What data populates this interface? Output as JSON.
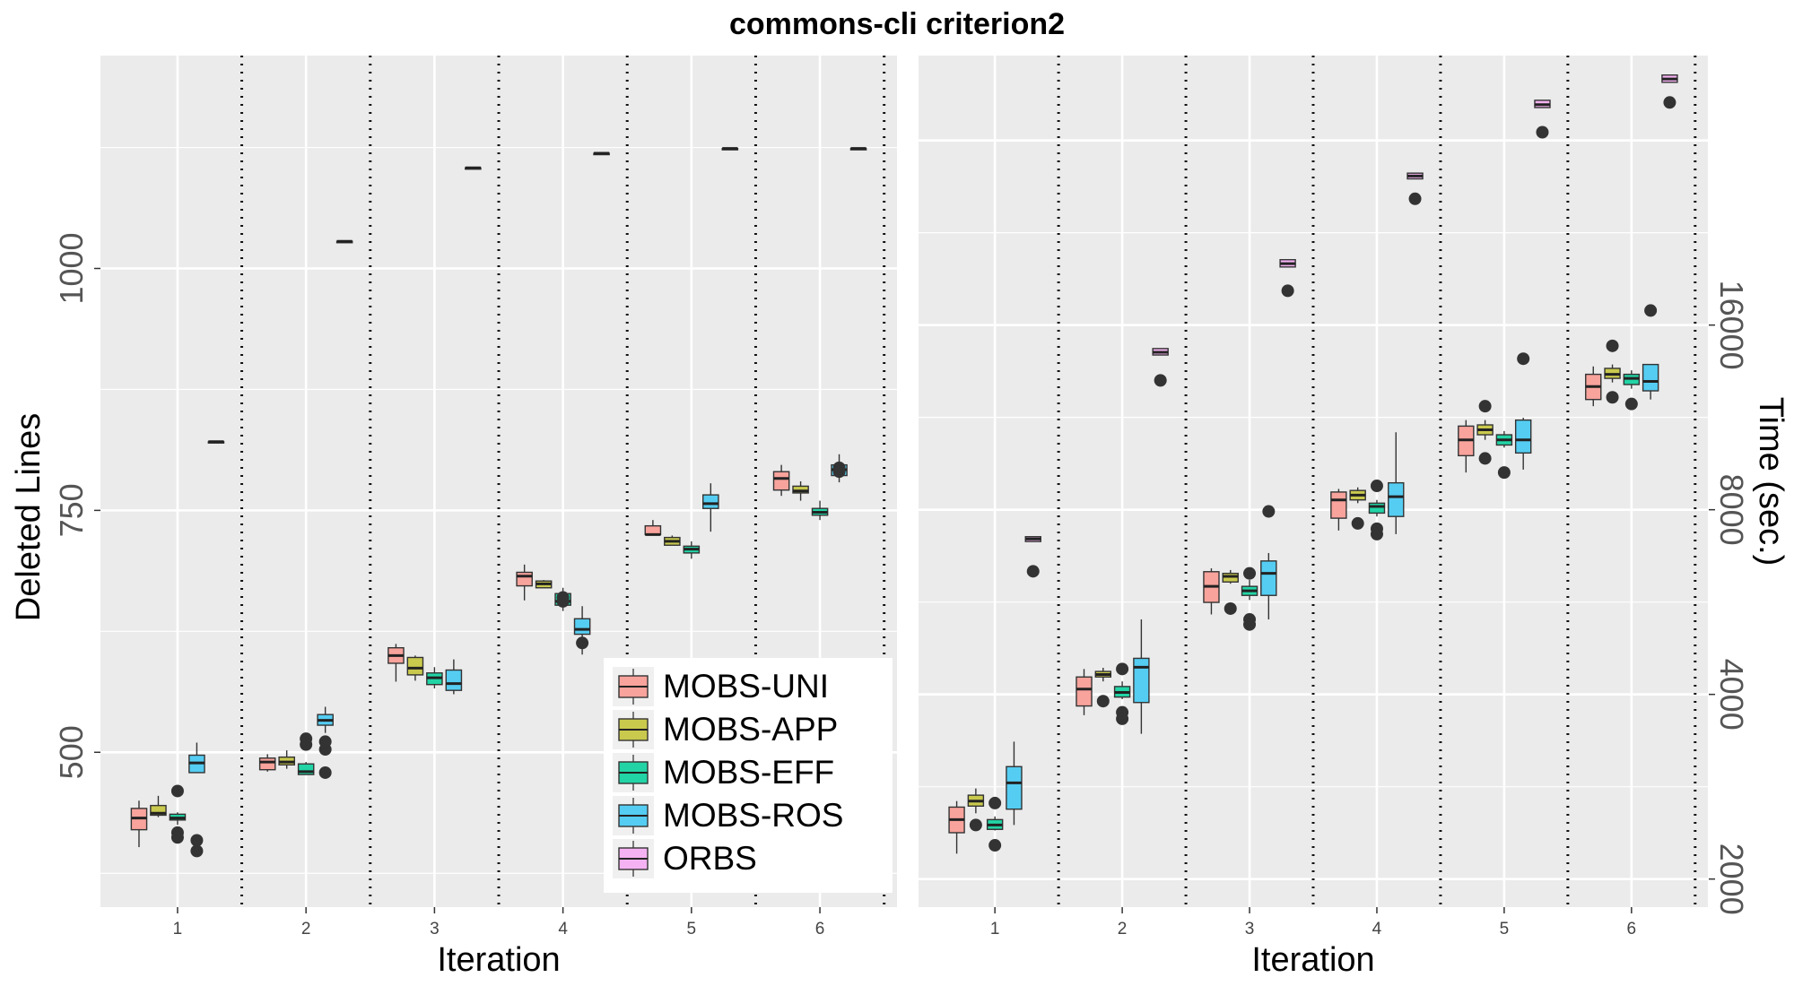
{
  "title": "commons-cli criterion2",
  "colors": {
    "MOBS-UNI": "#f8a39c",
    "MOBS-APP": "#c9c94e",
    "MOBS-EFF": "#22d4a5",
    "MOBS-ROS": "#55cdf2",
    "ORBS": "#f5b2f2",
    "panel": "#ebebeb",
    "grid": "#ffffff"
  },
  "legend": {
    "position": "bottom-right of left panel",
    "entries": [
      "MOBS-UNI",
      "MOBS-APP",
      "MOBS-EFF",
      "MOBS-ROS",
      "ORBS"
    ]
  },
  "chart_data": [
    {
      "type": "box",
      "panel": "left",
      "xlabel": "Iteration",
      "ylabel": "Deleted Lines",
      "categories": [
        "1",
        "2",
        "3",
        "4",
        "5",
        "6"
      ],
      "ylim": [
        340,
        1220
      ],
      "yticks": [
        500,
        750,
        1000
      ],
      "separators": "dotted vertical lines between iterations",
      "series": [
        {
          "name": "MOBS-UNI",
          "boxes": [
            {
              "min": 402,
              "q1": 420,
              "median": 432,
              "q3": 442,
              "max": 450,
              "outliers": []
            },
            {
              "min": 480,
              "q1": 482,
              "median": 490,
              "q3": 494,
              "max": 498,
              "outliers": []
            },
            {
              "min": 573,
              "q1": 592,
              "median": 600,
              "q3": 608,
              "max": 612,
              "outliers": []
            },
            {
              "min": 657,
              "q1": 672,
              "median": 682,
              "q3": 686,
              "max": 694,
              "outliers": []
            },
            {
              "min": 725,
              "q1": 725,
              "median": 725,
              "q3": 734,
              "max": 740,
              "outliers": []
            },
            {
              "min": 765,
              "q1": 771,
              "median": 783,
              "q3": 790,
              "max": 797,
              "outliers": []
            }
          ]
        },
        {
          "name": "MOBS-APP",
          "boxes": [
            {
              "min": 433,
              "q1": 435,
              "median": 437,
              "q3": 445,
              "max": 455,
              "outliers": []
            },
            {
              "min": 483,
              "q1": 487,
              "median": 490,
              "q3": 495,
              "max": 502,
              "outliers": []
            },
            {
              "min": 574,
              "q1": 580,
              "median": 587,
              "q3": 598,
              "max": 600,
              "outliers": []
            },
            {
              "min": 670,
              "q1": 670,
              "median": 674,
              "q3": 677,
              "max": 678,
              "outliers": []
            },
            {
              "min": 714,
              "q1": 714,
              "median": 718,
              "q3": 722,
              "max": 724,
              "outliers": []
            },
            {
              "min": 760,
              "q1": 768,
              "median": 770,
              "q3": 775,
              "max": 780,
              "outliers": []
            }
          ]
        },
        {
          "name": "MOBS-EFF",
          "boxes": [
            {
              "min": 425,
              "q1": 430,
              "median": 432,
              "q3": 436,
              "max": 438,
              "outliers": [
                460,
                417,
                412
              ]
            },
            {
              "min": 477,
              "q1": 477,
              "median": 480,
              "q3": 488,
              "max": 490,
              "outliers": [
                514,
                508
              ]
            },
            {
              "min": 566,
              "q1": 570,
              "median": 577,
              "q3": 582,
              "max": 588,
              "outliers": []
            },
            {
              "min": 646,
              "q1": 652,
              "median": 656,
              "q3": 664,
              "max": 670,
              "outliers": [
                660,
                656
              ]
            },
            {
              "min": 700,
              "q1": 706,
              "median": 710,
              "q3": 713,
              "max": 718,
              "outliers": []
            },
            {
              "min": 740,
              "q1": 745,
              "median": 748,
              "q3": 752,
              "max": 760,
              "outliers": []
            }
          ]
        },
        {
          "name": "MOBS-ROS",
          "boxes": [
            {
              "min": 479,
              "q1": 479,
              "median": 489,
              "q3": 497,
              "max": 510,
              "outliers": [
                398,
                409
              ]
            },
            {
              "min": 520,
              "q1": 528,
              "median": 533,
              "q3": 539,
              "max": 547,
              "outliers": [
                503,
                511,
                479
              ]
            },
            {
              "min": 560,
              "q1": 564,
              "median": 571,
              "q3": 585,
              "max": 596,
              "outliers": []
            },
            {
              "min": 601,
              "q1": 622,
              "median": 627,
              "q3": 638,
              "max": 651,
              "outliers": [
                613
              ]
            },
            {
              "min": 728,
              "q1": 752,
              "median": 757,
              "q3": 766,
              "max": 778,
              "outliers": []
            },
            {
              "min": 779,
              "q1": 786,
              "median": 792,
              "q3": 797,
              "max": 808,
              "outliers": [
                794,
                790
              ]
            }
          ]
        },
        {
          "name": "ORBS",
          "boxes": [
            {
              "min": 821,
              "q1": 821,
              "median": 821,
              "q3": 821,
              "max": 821,
              "outliers": []
            },
            {
              "min": 1028,
              "q1": 1028,
              "median": 1028,
              "q3": 1028,
              "max": 1028,
              "outliers": []
            },
            {
              "min": 1104,
              "q1": 1104,
              "median": 1104,
              "q3": 1104,
              "max": 1104,
              "outliers": []
            },
            {
              "min": 1119,
              "q1": 1119,
              "median": 1119,
              "q3": 1119,
              "max": 1119,
              "outliers": []
            },
            {
              "min": 1124,
              "q1": 1124,
              "median": 1124,
              "q3": 1124,
              "max": 1124,
              "outliers": []
            },
            {
              "min": 1124,
              "q1": 1124,
              "median": 1124,
              "q3": 1124,
              "max": 1124,
              "outliers": []
            }
          ]
        }
      ]
    },
    {
      "type": "box",
      "panel": "right",
      "xlabel": "Iteration",
      "ylabel": "Time (sec.)",
      "yaxis_side": "right",
      "yscale": "log",
      "categories": [
        "1",
        "2",
        "3",
        "4",
        "5",
        "6"
      ],
      "ylim": [
        1800,
        44000
      ],
      "yticks": [
        2000,
        4000,
        8000,
        16000
      ],
      "separators": "dotted vertical lines between iterations",
      "series": [
        {
          "name": "MOBS-UNI",
          "boxes": [
            {
              "min": 2200,
              "q1": 2380,
              "median": 2500,
              "q3": 2620,
              "max": 2680,
              "outliers": []
            },
            {
              "min": 3700,
              "q1": 3830,
              "median": 4080,
              "q3": 4270,
              "max": 4400,
              "outliers": []
            },
            {
              "min": 5400,
              "q1": 5650,
              "median": 6000,
              "q3": 6340,
              "max": 6420,
              "outliers": []
            },
            {
              "min": 7400,
              "q1": 7750,
              "median": 8300,
              "q3": 8550,
              "max": 8650,
              "outliers": []
            },
            {
              "min": 9200,
              "q1": 9800,
              "median": 10400,
              "q3": 10950,
              "max": 11200,
              "outliers": []
            },
            {
              "min": 11800,
              "q1": 12100,
              "median": 12700,
              "q3": 13300,
              "max": 13700,
              "outliers": []
            }
          ]
        },
        {
          "name": "MOBS-APP",
          "boxes": [
            {
              "min": 2560,
              "q1": 2630,
              "median": 2680,
              "q3": 2740,
              "max": 2810,
              "outliers": [
                2450
              ]
            },
            {
              "min": 4200,
              "q1": 4270,
              "median": 4310,
              "q3": 4360,
              "max": 4420,
              "outliers": [
                3900
              ]
            },
            {
              "min": 6060,
              "q1": 6100,
              "median": 6230,
              "q3": 6300,
              "max": 6380,
              "outliers": [
                5520
              ]
            },
            {
              "min": 8200,
              "q1": 8300,
              "median": 8450,
              "q3": 8600,
              "max": 8700,
              "outliers": [
                7600
              ]
            },
            {
              "min": 10400,
              "q1": 10600,
              "median": 10800,
              "q3": 11000,
              "max": 11200,
              "outliers": [
                11800,
                9700
              ]
            },
            {
              "min": 12900,
              "q1": 13100,
              "median": 13300,
              "q3": 13600,
              "max": 13800,
              "outliers": [
                14800,
                12200
              ]
            }
          ]
        },
        {
          "name": "MOBS-EFF",
          "boxes": [
            {
              "min": 2400,
              "q1": 2410,
              "median": 2450,
              "q3": 2500,
              "max": 2530,
              "outliers": [
                2660,
                2270
              ]
            },
            {
              "min": 3930,
              "q1": 3960,
              "median": 4030,
              "q3": 4120,
              "max": 4200,
              "outliers": [
                4400,
                3740,
                3650
              ]
            },
            {
              "min": 5700,
              "q1": 5800,
              "median": 5900,
              "q3": 6000,
              "max": 6150,
              "outliers": [
                6300,
                5300,
                5200
              ]
            },
            {
              "min": 7800,
              "q1": 7900,
              "median": 8100,
              "q3": 8200,
              "max": 8300,
              "outliers": [
                8750,
                7450,
                7300
              ]
            },
            {
              "min": 10100,
              "q1": 10200,
              "median": 10400,
              "q3": 10600,
              "max": 10750,
              "outliers": [
                9200
              ]
            },
            {
              "min": 12600,
              "q1": 12800,
              "median": 13100,
              "q3": 13300,
              "max": 13500,
              "outliers": [
                11900
              ]
            }
          ]
        },
        {
          "name": "MOBS-ROS",
          "boxes": [
            {
              "min": 2450,
              "q1": 2600,
              "median": 2870,
              "q3": 3050,
              "max": 3350,
              "outliers": []
            },
            {
              "min": 3450,
              "q1": 3880,
              "median": 4430,
              "q3": 4580,
              "max": 5300,
              "outliers": []
            },
            {
              "min": 5300,
              "q1": 5800,
              "median": 6300,
              "q3": 6600,
              "max": 6800,
              "outliers": [
                7950
              ]
            },
            {
              "min": 7300,
              "q1": 7800,
              "median": 8400,
              "q3": 8850,
              "max": 10700,
              "outliers": []
            },
            {
              "min": 9300,
              "q1": 9900,
              "median": 10400,
              "q3": 11200,
              "max": 11300,
              "outliers": [
                14100
              ]
            },
            {
              "min": 12100,
              "q1": 12500,
              "median": 12950,
              "q3": 13800,
              "max": 13800,
              "outliers": [
                16900
              ]
            }
          ]
        },
        {
          "name": "ORBS",
          "boxes": [
            {
              "min": 7100,
              "q1": 7100,
              "median": 7170,
              "q3": 7230,
              "max": 7230,
              "outliers": [
                6350
              ]
            },
            {
              "min": 14300,
              "q1": 14300,
              "median": 14450,
              "q3": 14650,
              "max": 14650,
              "outliers": [
                13000
              ]
            },
            {
              "min": 19900,
              "q1": 19900,
              "median": 20150,
              "q3": 20450,
              "max": 20450,
              "outliers": [
                18200
              ]
            },
            {
              "min": 27700,
              "q1": 27700,
              "median": 28000,
              "q3": 28300,
              "max": 28300,
              "outliers": [
                25700
              ]
            },
            {
              "min": 36200,
              "q1": 36200,
              "median": 36600,
              "q3": 37200,
              "max": 37200,
              "outliers": [
                33000
              ]
            },
            {
              "min": 39800,
              "q1": 39800,
              "median": 40300,
              "q3": 40900,
              "max": 40900,
              "outliers": [
                36900
              ]
            }
          ]
        }
      ]
    }
  ]
}
